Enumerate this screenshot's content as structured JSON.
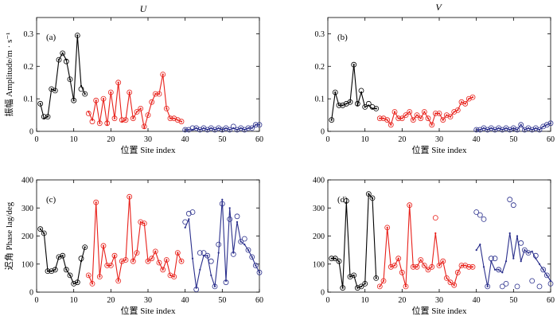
{
  "column_titles": [
    "U",
    "V"
  ],
  "colors": {
    "black": "#000000",
    "red": "#e8201a",
    "blue": "#2a2f8c"
  },
  "chart_data": [
    {
      "type": "line",
      "panel_label": "(a)",
      "xlabel": "位置 Site index",
      "ylabel": "振幅 Amplitude/m · s⁻¹",
      "xlim": [
        0,
        60
      ],
      "ylim": [
        0,
        0.35
      ],
      "xticks": [
        0,
        10,
        20,
        30,
        40,
        50,
        60
      ],
      "yticks": [
        0,
        0.1,
        0.2,
        0.3
      ],
      "series": [
        {
          "color": "black",
          "x": [
            1,
            2,
            3,
            4,
            5,
            6,
            7,
            8,
            9,
            10,
            11,
            12,
            13
          ],
          "line": [
            0.085,
            0.04,
            0.045,
            0.13,
            0.125,
            0.22,
            0.24,
            0.22,
            0.16,
            0.095,
            0.295,
            0.14,
            0.115
          ],
          "markers": [
            0.085,
            0.045,
            0.045,
            0.13,
            0.125,
            0.22,
            0.24,
            0.215,
            0.16,
            0.095,
            0.295,
            0.13,
            0.115
          ]
        },
        {
          "color": "red",
          "x": [
            14,
            15,
            16,
            17,
            18,
            19,
            20,
            21,
            22,
            23,
            24,
            25,
            26,
            27,
            28,
            29,
            30,
            31,
            32,
            33,
            34,
            35,
            36,
            37,
            38,
            39
          ],
          "line": [
            0.06,
            0.035,
            0.095,
            0.025,
            0.1,
            0.02,
            0.12,
            0.04,
            0.15,
            0.03,
            0.035,
            0.12,
            0.04,
            0.06,
            0.07,
            0.01,
            0.05,
            0.09,
            0.115,
            0.115,
            0.175,
            0.07,
            0.04,
            0.04,
            0.035,
            0.03
          ],
          "markers": [
            0.055,
            0.03,
            0.095,
            0.025,
            0.1,
            0.025,
            0.12,
            0.04,
            0.15,
            0.035,
            0.035,
            0.12,
            0.04,
            0.06,
            0.07,
            0.015,
            0.05,
            0.09,
            0.115,
            0.115,
            0.175,
            0.07,
            0.04,
            0.04,
            0.035,
            0.03
          ]
        },
        {
          "color": "blue",
          "x": [
            40,
            41,
            42,
            43,
            44,
            45,
            46,
            47,
            48,
            49,
            50,
            51,
            52,
            53,
            54,
            55,
            56,
            57,
            58,
            59,
            60
          ],
          "line": [
            0.005,
            0.005,
            0.005,
            0.01,
            0.005,
            0.01,
            0.005,
            0.01,
            0.005,
            0.01,
            0.005,
            0.01,
            0.005,
            0.01,
            0.005,
            0.01,
            0.005,
            0.01,
            0.01,
            0.02,
            0.02
          ],
          "markers": [
            0.005,
            0.005,
            0.01,
            0.01,
            0.005,
            0.01,
            0.005,
            0.01,
            0.005,
            0.01,
            0.005,
            0.01,
            0.005,
            0.015,
            0.005,
            0.01,
            0.005,
            0.01,
            0.01,
            0.02,
            0.02
          ]
        }
      ]
    },
    {
      "type": "line",
      "panel_label": "(b)",
      "xlabel": "位置 Site index",
      "ylabel": "",
      "xlim": [
        0,
        60
      ],
      "ylim": [
        0,
        0.35
      ],
      "xticks": [
        0,
        10,
        20,
        30,
        40,
        50,
        60
      ],
      "yticks": [
        0,
        0.1,
        0.2,
        0.3
      ],
      "series": [
        {
          "color": "black",
          "x": [
            1,
            2,
            3,
            4,
            5,
            6,
            7,
            8,
            9,
            10,
            11,
            12,
            13
          ],
          "line": [
            0.035,
            0.12,
            0.08,
            0.08,
            0.085,
            0.09,
            0.205,
            0.08,
            0.12,
            0.075,
            0.08,
            0.07,
            0.07
          ],
          "markers": [
            0.035,
            0.12,
            0.08,
            0.08,
            0.085,
            0.09,
            0.205,
            0.085,
            0.125,
            0.075,
            0.085,
            0.075,
            0.07
          ]
        },
        {
          "color": "red",
          "x": [
            14,
            15,
            16,
            17,
            18,
            19,
            20,
            21,
            22,
            23,
            24,
            25,
            26,
            27,
            28,
            29,
            30,
            31,
            32,
            33,
            34,
            35,
            36,
            37,
            38,
            39
          ],
          "line": [
            0.04,
            0.04,
            0.035,
            0.02,
            0.06,
            0.04,
            0.04,
            0.05,
            0.06,
            0.035,
            0.05,
            0.04,
            0.06,
            0.04,
            0.02,
            0.055,
            0.055,
            0.035,
            0.05,
            0.045,
            0.06,
            0.065,
            0.09,
            0.085,
            0.1,
            0.105
          ],
          "markers": [
            0.04,
            0.04,
            0.035,
            0.02,
            0.06,
            0.04,
            0.04,
            0.05,
            0.06,
            0.035,
            0.05,
            0.04,
            0.06,
            0.04,
            0.02,
            0.055,
            0.055,
            0.035,
            0.05,
            0.045,
            0.06,
            0.065,
            0.09,
            0.085,
            0.1,
            0.105
          ]
        },
        {
          "color": "blue",
          "x": [
            40,
            41,
            42,
            43,
            44,
            45,
            46,
            47,
            48,
            49,
            50,
            51,
            52,
            53,
            54,
            55,
            56,
            57,
            58,
            59,
            60
          ],
          "line": [
            0.005,
            0.005,
            0.01,
            0.005,
            0.01,
            0.005,
            0.01,
            0.005,
            0.01,
            0.005,
            0.01,
            0.005,
            0.02,
            0.005,
            0.01,
            0.005,
            0.01,
            0.005,
            0.015,
            0.02,
            0.025
          ],
          "markers": [
            0.005,
            0.005,
            0.01,
            0.005,
            0.01,
            0.005,
            0.01,
            0.005,
            0.01,
            0.005,
            0.01,
            0.005,
            0.02,
            0.005,
            0.01,
            0.005,
            0.01,
            0.005,
            0.015,
            0.02,
            0.025
          ]
        }
      ]
    },
    {
      "type": "line",
      "panel_label": "(c)",
      "xlabel": "位置 Site index",
      "ylabel": "迟角 Phase lag/deg",
      "xlim": [
        0,
        60
      ],
      "ylim": [
        0,
        400
      ],
      "xticks": [
        0,
        10,
        20,
        30,
        40,
        50,
        60
      ],
      "yticks": [
        0,
        100,
        200,
        300,
        400
      ],
      "series": [
        {
          "color": "black",
          "x": [
            1,
            2,
            3,
            4,
            5,
            6,
            7,
            8,
            9,
            10,
            11,
            12,
            13
          ],
          "line": [
            225,
            210,
            75,
            75,
            80,
            125,
            130,
            80,
            60,
            30,
            35,
            110,
            160
          ],
          "markers": [
            225,
            210,
            75,
            75,
            80,
            125,
            130,
            80,
            60,
            30,
            35,
            120,
            160
          ]
        },
        {
          "color": "red",
          "x": [
            14,
            15,
            16,
            17,
            18,
            19,
            20,
            21,
            22,
            23,
            24,
            25,
            26,
            27,
            28,
            29,
            30,
            31,
            32,
            33,
            34,
            35,
            36,
            37,
            38,
            39
          ],
          "line": [
            60,
            30,
            320,
            55,
            165,
            95,
            95,
            130,
            40,
            110,
            115,
            340,
            110,
            140,
            250,
            245,
            110,
            120,
            145,
            105,
            80,
            115,
            60,
            55,
            140,
            110
          ],
          "markers": [
            60,
            30,
            320,
            55,
            165,
            95,
            95,
            130,
            40,
            110,
            115,
            340,
            110,
            140,
            250,
            245,
            110,
            120,
            145,
            105,
            80,
            115,
            60,
            55,
            140,
            110
          ]
        },
        {
          "color": "blue",
          "x": [
            40,
            41,
            42,
            43,
            44,
            45,
            46,
            47,
            48,
            49,
            50,
            51,
            52,
            53,
            54,
            55,
            56,
            57,
            58,
            59,
            60
          ],
          "line": [
            230,
            260,
            120,
            15,
            80,
            130,
            130,
            60,
            20,
            140,
            330,
            40,
            300,
            140,
            250,
            180,
            170,
            150,
            125,
            95,
            70
          ],
          "markers": [
            250,
            280,
            285,
            10,
            140,
            140,
            130,
            110,
            20,
            170,
            315,
            35,
            260,
            135,
            270,
            180,
            190,
            150,
            125,
            95,
            70
          ]
        }
      ]
    },
    {
      "type": "line",
      "panel_label": "(d)",
      "xlabel": "位置 Site index",
      "ylabel": "",
      "xlim": [
        0,
        60
      ],
      "ylim": [
        0,
        400
      ],
      "xticks": [
        0,
        10,
        20,
        30,
        40,
        50,
        60
      ],
      "yticks": [
        0,
        100,
        200,
        300,
        400
      ],
      "series": [
        {
          "color": "black",
          "x": [
            1,
            2,
            3,
            4,
            5,
            6,
            7,
            8,
            9,
            10,
            11,
            12,
            13
          ],
          "line": [
            120,
            120,
            110,
            15,
            320,
            55,
            60,
            15,
            20,
            30,
            350,
            335,
            50
          ],
          "markers": [
            120,
            120,
            110,
            15,
            325,
            55,
            60,
            15,
            20,
            30,
            350,
            335,
            50
          ]
        },
        {
          "color": "red",
          "x": [
            14,
            15,
            16,
            17,
            18,
            19,
            20,
            21,
            22,
            23,
            24,
            25,
            26,
            27,
            28,
            29,
            30,
            31,
            32,
            33,
            34,
            35,
            36,
            37,
            38,
            39
          ],
          "line": [
            20,
            40,
            230,
            90,
            95,
            120,
            70,
            20,
            310,
            90,
            90,
            115,
            95,
            80,
            90,
            210,
            95,
            110,
            50,
            35,
            25,
            70,
            95,
            95,
            90,
            90
          ],
          "markers": [
            20,
            40,
            230,
            90,
            95,
            120,
            70,
            20,
            310,
            90,
            90,
            115,
            95,
            80,
            90,
            265,
            95,
            110,
            50,
            35,
            25,
            70,
            95,
            95,
            90,
            90
          ]
        },
        {
          "color": "blue",
          "x": [
            40,
            41,
            42,
            43,
            44,
            45,
            46,
            47,
            48,
            49,
            50,
            51,
            52,
            53,
            54,
            55,
            56,
            57,
            58,
            59,
            60
          ],
          "line": [
            150,
            170,
            90,
            20,
            110,
            80,
            80,
            70,
            110,
            210,
            120,
            200,
            110,
            150,
            140,
            145,
            120,
            100,
            80,
            60,
            40
          ],
          "markers": [
            285,
            275,
            260,
            20,
            120,
            120,
            80,
            20,
            30,
            330,
            310,
            20,
            175,
            150,
            140,
            40,
            130,
            20,
            80,
            60,
            30
          ]
        }
      ]
    }
  ]
}
